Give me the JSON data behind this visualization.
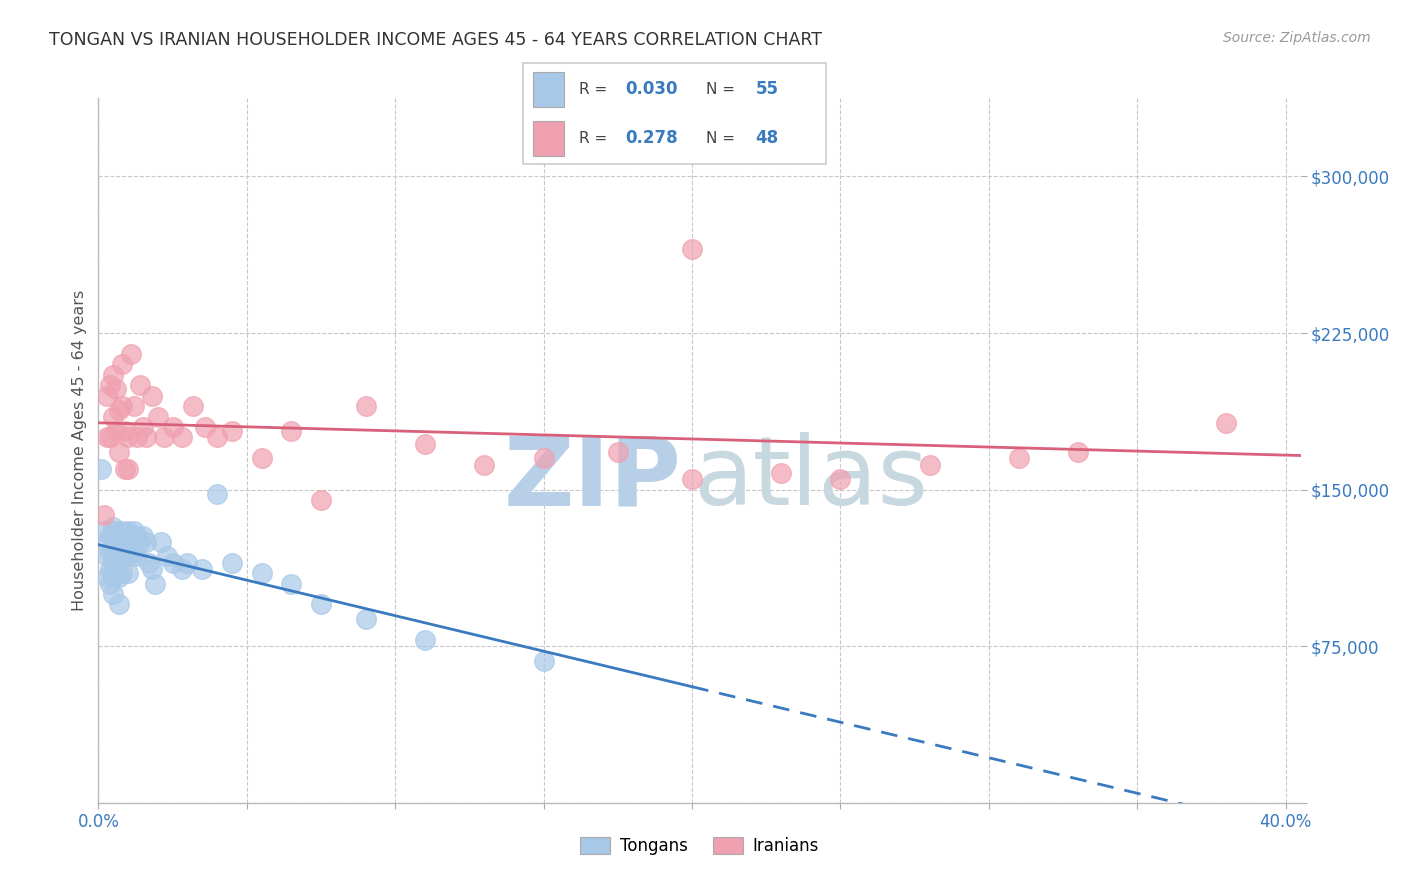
{
  "title": "TONGAN VS IRANIAN HOUSEHOLDER INCOME AGES 45 - 64 YEARS CORRELATION CHART",
  "source": "Source: ZipAtlas.com",
  "ylabel": "Householder Income Ages 45 - 64 years",
  "xlim": [
    0.0,
    0.405
  ],
  "ylim": [
    0,
    337500
  ],
  "xticks": [
    0.0,
    0.05,
    0.1,
    0.15,
    0.2,
    0.25,
    0.3,
    0.35,
    0.4
  ],
  "ytick_values": [
    0,
    75000,
    150000,
    225000,
    300000
  ],
  "ytick_labels": [
    "",
    "$75,000",
    "$150,000",
    "$225,000",
    "$300,000"
  ],
  "blue_R": "0.030",
  "blue_N": "55",
  "pink_R": "0.278",
  "pink_N": "48",
  "blue_scatter_color": "#a8c8e8",
  "pink_scatter_color": "#f0a0b0",
  "blue_line_color": "#3a7abf",
  "pink_line_color": "#d9607a",
  "grid_color": "#c8c8c8",
  "zip_color": "#b8cfe8",
  "atlas_color": "#c8d8e0",
  "tongans_x": [
    0.001,
    0.002,
    0.003,
    0.003,
    0.003,
    0.004,
    0.004,
    0.004,
    0.004,
    0.005,
    0.005,
    0.005,
    0.005,
    0.005,
    0.006,
    0.006,
    0.006,
    0.007,
    0.007,
    0.007,
    0.007,
    0.008,
    0.008,
    0.008,
    0.009,
    0.009,
    0.01,
    0.01,
    0.01,
    0.011,
    0.011,
    0.012,
    0.012,
    0.013,
    0.013,
    0.014,
    0.015,
    0.016,
    0.017,
    0.018,
    0.019,
    0.021,
    0.023,
    0.025,
    0.028,
    0.03,
    0.035,
    0.04,
    0.045,
    0.055,
    0.065,
    0.075,
    0.09,
    0.11,
    0.15
  ],
  "tongans_y": [
    160000,
    130000,
    125000,
    118000,
    108000,
    128000,
    120000,
    112000,
    105000,
    132000,
    122000,
    115000,
    108000,
    100000,
    130000,
    120000,
    110000,
    128000,
    118000,
    108000,
    95000,
    130000,
    120000,
    110000,
    128000,
    118000,
    130000,
    120000,
    110000,
    128000,
    118000,
    130000,
    120000,
    128000,
    118000,
    125000,
    128000,
    125000,
    115000,
    112000,
    105000,
    125000,
    118000,
    115000,
    112000,
    115000,
    112000,
    148000,
    115000,
    110000,
    105000,
    95000,
    88000,
    78000,
    68000
  ],
  "iranians_x": [
    0.002,
    0.003,
    0.003,
    0.004,
    0.004,
    0.005,
    0.005,
    0.006,
    0.006,
    0.007,
    0.007,
    0.008,
    0.008,
    0.009,
    0.009,
    0.01,
    0.01,
    0.011,
    0.012,
    0.013,
    0.014,
    0.015,
    0.016,
    0.018,
    0.02,
    0.022,
    0.025,
    0.028,
    0.032,
    0.036,
    0.04,
    0.045,
    0.055,
    0.065,
    0.075,
    0.09,
    0.11,
    0.13,
    0.15,
    0.175,
    0.2,
    0.23,
    0.28,
    0.33,
    0.38,
    0.2,
    0.25,
    0.31
  ],
  "iranians_y": [
    138000,
    195000,
    175000,
    200000,
    175000,
    205000,
    185000,
    198000,
    178000,
    188000,
    168000,
    210000,
    190000,
    178000,
    160000,
    175000,
    160000,
    215000,
    190000,
    175000,
    200000,
    180000,
    175000,
    195000,
    185000,
    175000,
    180000,
    175000,
    190000,
    180000,
    175000,
    178000,
    165000,
    178000,
    145000,
    190000,
    172000,
    162000,
    165000,
    168000,
    155000,
    158000,
    162000,
    168000,
    182000,
    265000,
    155000,
    165000
  ]
}
